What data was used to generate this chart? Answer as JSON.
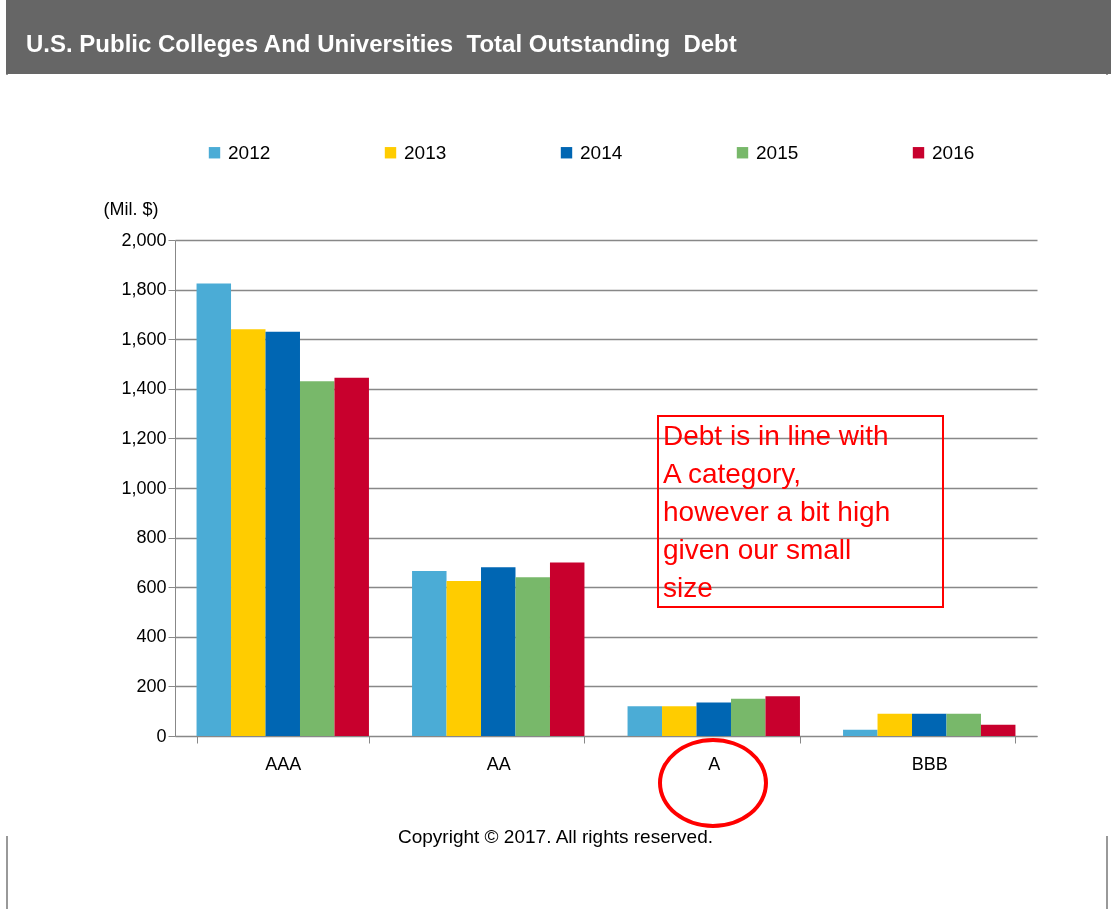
{
  "chart_data": {
    "type": "bar",
    "title": "U.S. Public Colleges And Universities  Total Outstanding  Debt",
    "ylabel": "(Mil. $)",
    "categories": [
      "AAA",
      "AA",
      "A",
      "BBB"
    ],
    "series": [
      {
        "name": "2012",
        "color": "#4bacd6",
        "values": [
          1825,
          665,
          120,
          25
        ]
      },
      {
        "name": "2013",
        "color": "#ffcc00",
        "values": [
          1640,
          625,
          120,
          90
        ]
      },
      {
        "name": "2014",
        "color": "#0066b3",
        "values": [
          1630,
          680,
          135,
          90
        ]
      },
      {
        "name": "2015",
        "color": "#78b86a",
        "values": [
          1430,
          640,
          150,
          90
        ]
      },
      {
        "name": "2016",
        "color": "#c8002d",
        "values": [
          1445,
          700,
          160,
          45
        ]
      }
    ],
    "ylim": [
      0,
      2000
    ],
    "yticks": [
      0,
      200,
      400,
      600,
      800,
      {
        "value": 1000,
        "label": "1,000"
      },
      {
        "value": 1200,
        "label": "1,200"
      },
      {
        "value": 1400,
        "label": "1,400"
      },
      {
        "value": 1600,
        "label": "1,600"
      },
      {
        "value": 1800,
        "label": "1,800"
      },
      {
        "value": 2000,
        "label": "2,000"
      }
    ],
    "grid": "y",
    "legend": "top",
    "annotations": [
      "Debt is in line with A category, however a bit high given our small size",
      "Copyright © 2017. All rights reserved."
    ]
  }
}
